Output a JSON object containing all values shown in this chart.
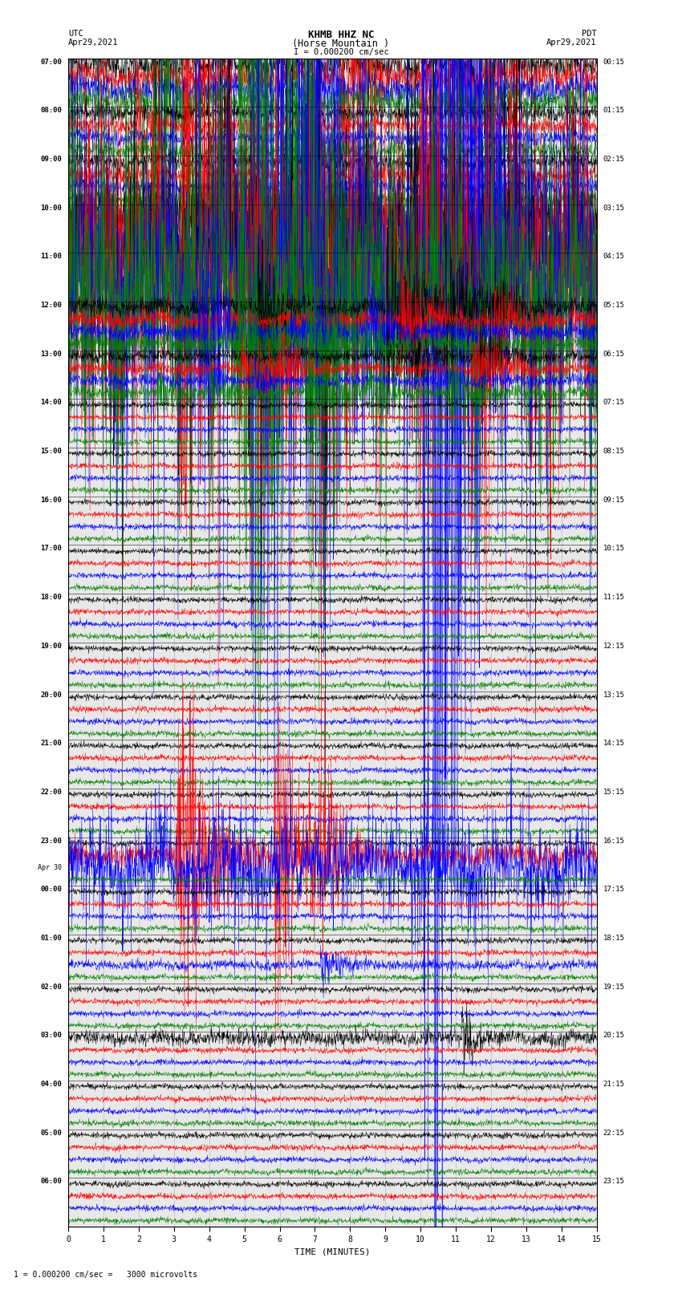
{
  "title_line1": "KHMB HHZ NC",
  "title_line2": "(Horse Mountain )",
  "scale_label": "I = 0.000200 cm/sec",
  "utc_label": "UTC",
  "utc_date": "Apr29,2021",
  "pdt_label": "PDT",
  "pdt_date": "Apr29,2021",
  "xlabel": "TIME (MINUTES)",
  "bottom_note": "1 = 0.000200 cm/sec =   3000 microvolts",
  "bg_color": "#ffffff",
  "plot_bg": "#e8e8e8",
  "fig_width": 8.5,
  "fig_height": 16.13,
  "left_times": [
    "07:00",
    "08:00",
    "09:00",
    "10:00",
    "11:00",
    "12:00",
    "13:00",
    "14:00",
    "15:00",
    "16:00",
    "17:00",
    "18:00",
    "19:00",
    "20:00",
    "21:00",
    "22:00",
    "23:00",
    "Apr 30\n00:00",
    "01:00",
    "02:00",
    "03:00",
    "04:00",
    "05:00",
    "06:00"
  ],
  "right_times": [
    "00:15",
    "01:15",
    "02:15",
    "03:15",
    "04:15",
    "05:15",
    "06:15",
    "07:15",
    "08:15",
    "09:15",
    "10:15",
    "11:15",
    "12:15",
    "13:15",
    "14:15",
    "15:15",
    "16:15",
    "17:15",
    "18:15",
    "19:15",
    "20:15",
    "21:15",
    "22:15",
    "23:15"
  ],
  "trace_colors": [
    "black",
    "red",
    "blue",
    "green"
  ],
  "n_blocks": 24,
  "traces_per_block": 4,
  "minutes": 15,
  "seed": 12345,
  "grid_color": "#aaaaaa",
  "seismic_event_blocks": [
    0,
    1,
    2,
    3,
    4,
    5
  ],
  "big_event_blocks": [
    3,
    4
  ],
  "medium_event_blocks": [
    5,
    6,
    7
  ],
  "special_red_block": 16,
  "special_blue_block": 18,
  "special_red2_block": 20
}
